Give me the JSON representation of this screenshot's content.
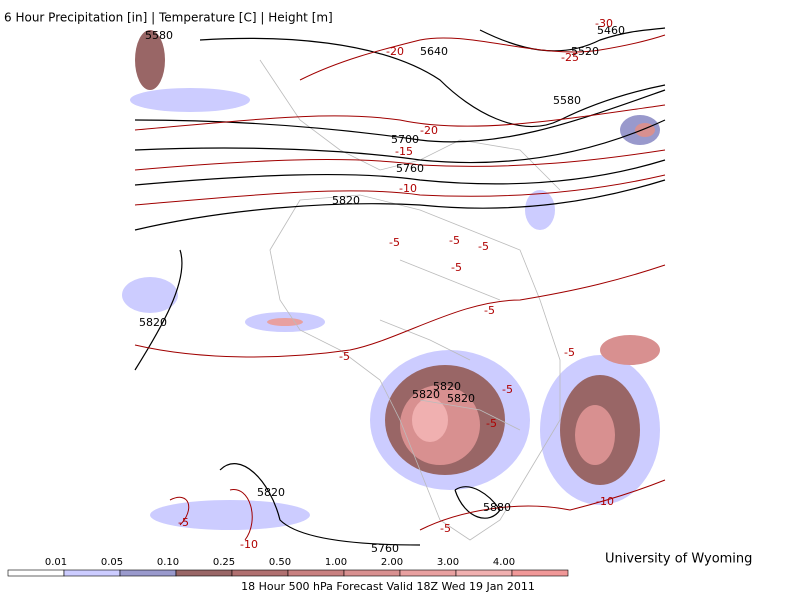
{
  "header": {
    "title": "6 Hour Precipitation [in] | Temperature [C] | Height [m]"
  },
  "map": {
    "height_labels": [
      "5580",
      "5640",
      "5460",
      "5520",
      "5580",
      "5700",
      "5760",
      "5820",
      "5820",
      "5820",
      "5820",
      "5820",
      "5820",
      "5880",
      "5760"
    ],
    "temperature_labels": [
      "-30",
      "-25",
      "-20",
      "-20",
      "-15",
      "-10",
      "-5",
      "-5",
      "-5",
      "-5",
      "-5",
      "-5",
      "-5",
      "-5",
      "-5",
      "-5",
      "-10",
      "-10",
      "-5"
    ]
  },
  "colorbar": {
    "labels": [
      "0.01",
      "0.05",
      "0.10",
      "0.25",
      "0.50",
      "1.00",
      "2.00",
      "3.00",
      "4.00"
    ],
    "colors": [
      "#ffffff",
      "#ccccff",
      "#9999cc",
      "#996666",
      "#b07070",
      "#c88080",
      "#d89090",
      "#e8a0a0",
      "#f0b0b0",
      "#f09898"
    ]
  },
  "footer": {
    "caption": "18 Hour 500 hPa Forecast Valid 18Z Wed 19 Jan 2011",
    "credit": "University of Wyoming"
  }
}
